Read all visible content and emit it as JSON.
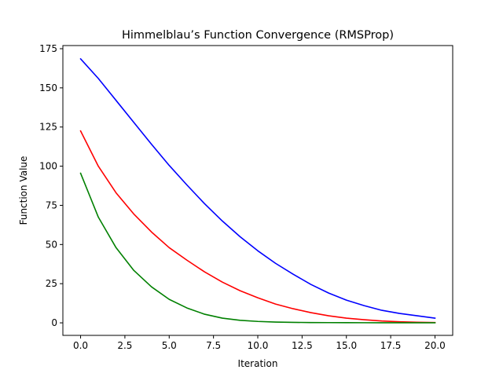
{
  "chart_data": {
    "type": "line",
    "title": "Himmelblau’s Function Convergence (RMSProp)",
    "xlabel": "Iteration",
    "ylabel": "Function Value",
    "xlim": [
      -1,
      21
    ],
    "ylim": [
      -8,
      177
    ],
    "grid": false,
    "xticks": [
      0,
      2.5,
      5,
      7.5,
      10,
      12.5,
      15,
      17.5,
      20
    ],
    "xtick_labels": [
      "0.0",
      "2.5",
      "5.0",
      "7.5",
      "10.0",
      "12.5",
      "15.0",
      "17.5",
      "20.0"
    ],
    "yticks": [
      0,
      25,
      50,
      75,
      100,
      125,
      150,
      175
    ],
    "ytick_labels": [
      "0",
      "25",
      "50",
      "75",
      "100",
      "125",
      "150",
      "175"
    ],
    "x": [
      0,
      1,
      2,
      3,
      4,
      5,
      6,
      7,
      8,
      9,
      10,
      11,
      12,
      13,
      14,
      15,
      16,
      17,
      18,
      19,
      20
    ],
    "series": [
      {
        "color": "#0000ff",
        "values": [
          168.5,
          156,
          142,
          128,
          114,
          100.5,
          88,
          76,
          65,
          55,
          46,
          38,
          31,
          24.5,
          19,
          14.5,
          11,
          8,
          6,
          4.5,
          3
        ]
      },
      {
        "color": "#ff0000",
        "values": [
          122.5,
          100,
          83,
          69.5,
          58,
          48,
          40,
          32.5,
          26,
          20.5,
          16,
          12,
          9,
          6.5,
          4.5,
          3,
          2,
          1.2,
          0.7,
          0.4,
          0.2
        ]
      },
      {
        "color": "#008000",
        "values": [
          95.5,
          67.5,
          48,
          33.5,
          23,
          15,
          9.5,
          5.5,
          3,
          1.6,
          0.9,
          0.5,
          0.3,
          0.2,
          0.15,
          0.1,
          0.08,
          0.06,
          0.05,
          0.04,
          0.03
        ]
      }
    ]
  }
}
